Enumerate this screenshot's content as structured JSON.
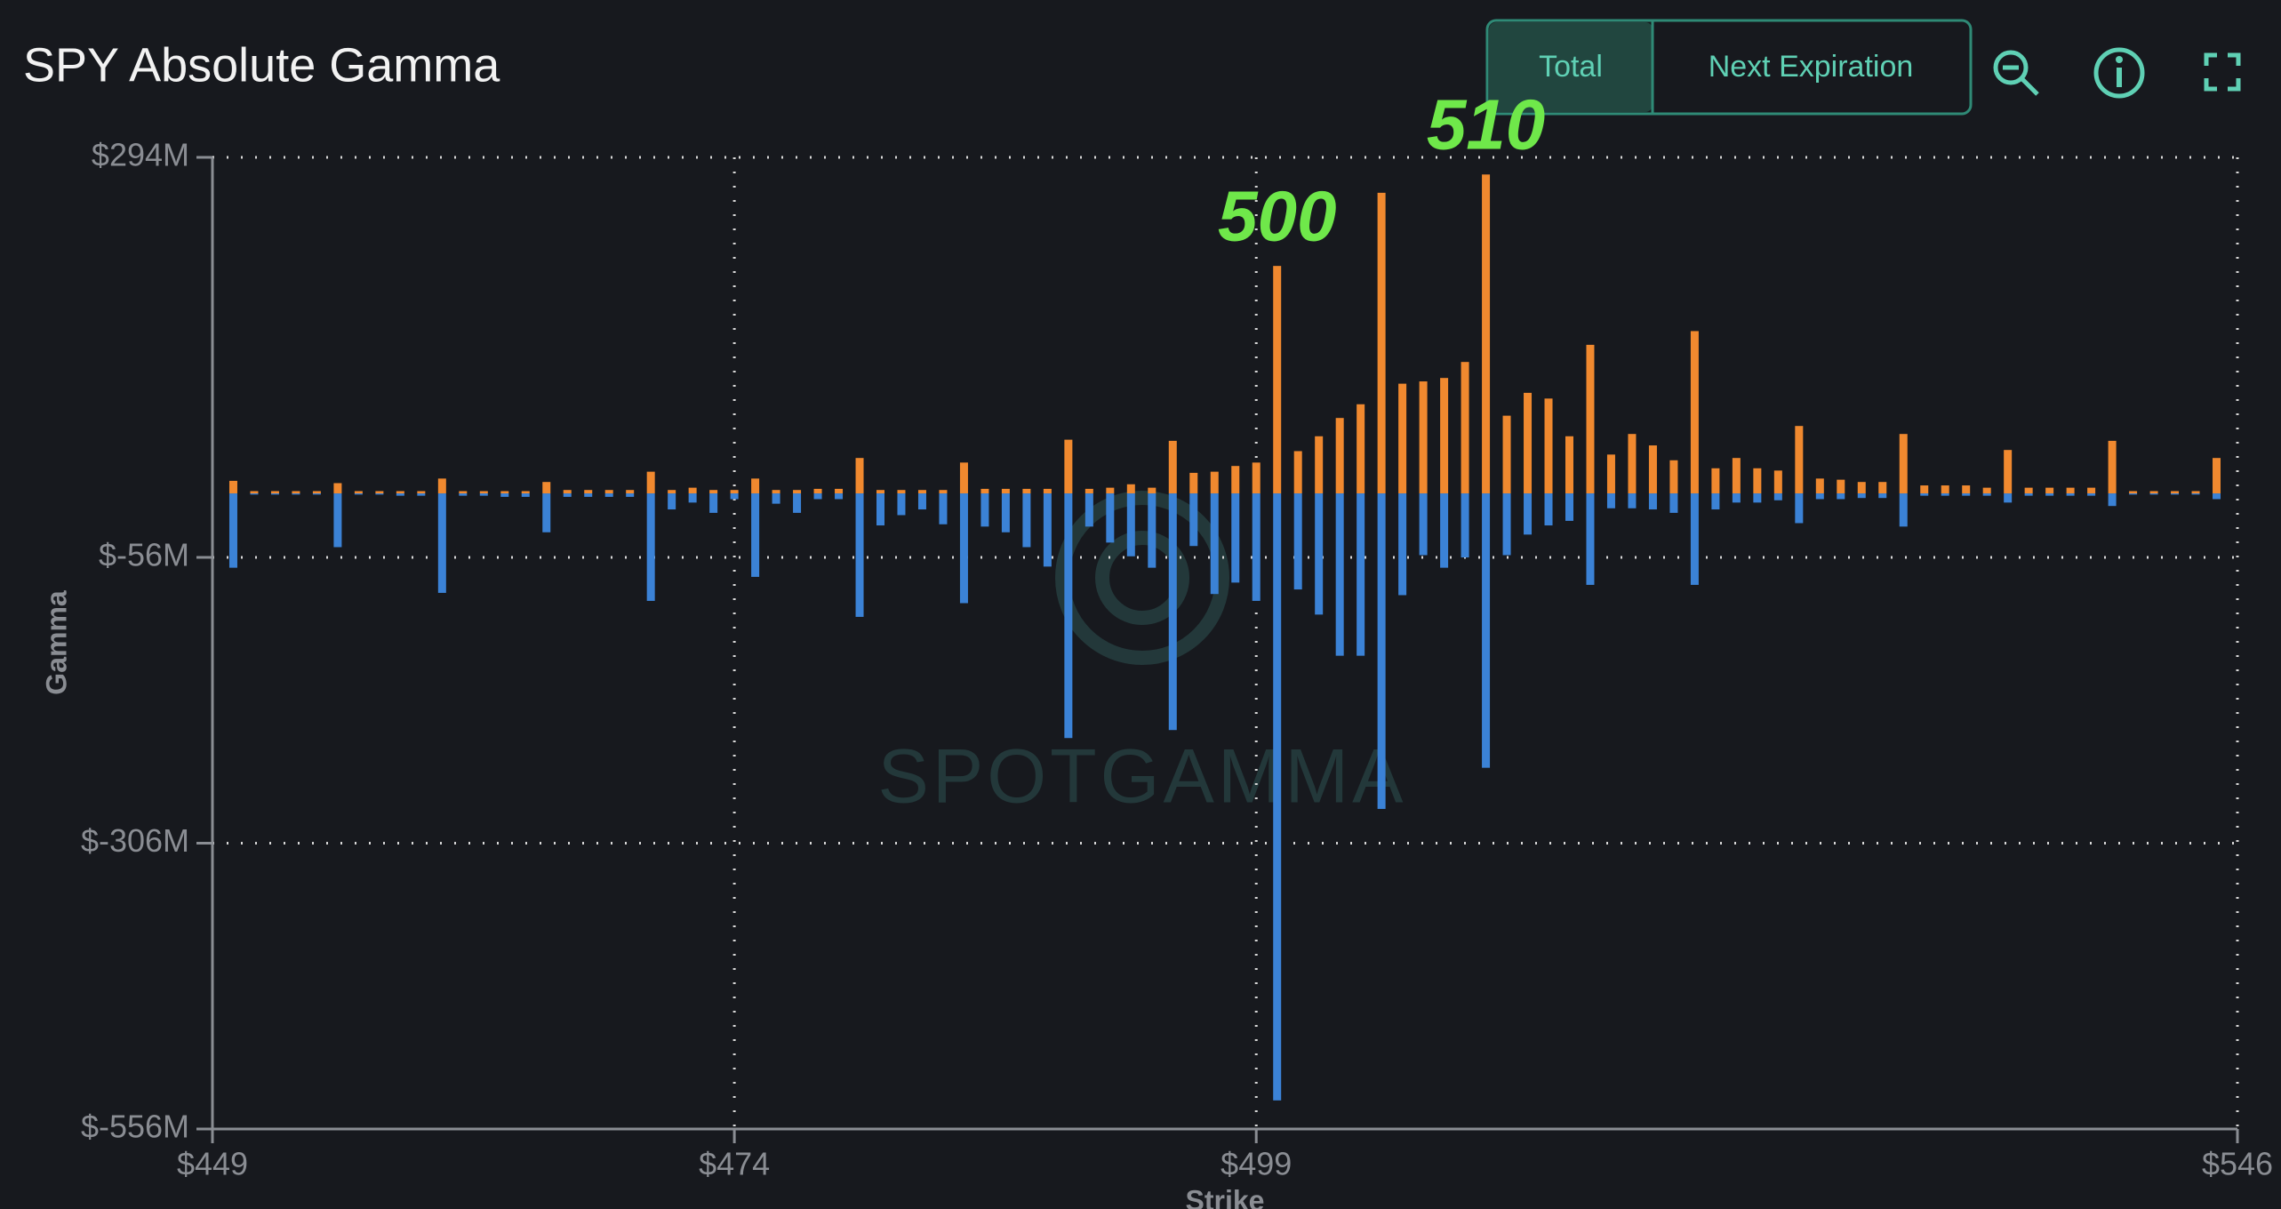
{
  "chart_data": {
    "type": "bar",
    "title": "SPY Absolute Gamma",
    "x_label": "Strike",
    "y_label": "Gamma",
    "watermark": "SPOTGAMMA",
    "x": [
      450,
      451,
      452,
      453,
      454,
      455,
      456,
      457,
      458,
      459,
      460,
      461,
      462,
      463,
      464,
      465,
      466,
      467,
      468,
      469,
      470,
      471,
      472,
      473,
      474,
      475,
      476,
      477,
      478,
      479,
      480,
      481,
      482,
      483,
      484,
      485,
      486,
      487,
      488,
      489,
      490,
      491,
      492,
      493,
      494,
      495,
      496,
      497,
      498,
      499,
      500,
      501,
      502,
      503,
      504,
      505,
      506,
      507,
      508,
      509,
      510,
      511,
      512,
      513,
      514,
      515,
      516,
      517,
      518,
      519,
      520,
      521,
      522,
      523,
      524,
      525,
      526,
      527,
      528,
      529,
      530,
      531,
      532,
      533,
      534,
      535,
      536,
      537,
      538,
      539,
      540,
      541,
      542,
      543,
      544,
      545
    ],
    "series": [
      {
        "color": "#f0892f",
        "values": [
          11,
          2,
          2,
          2,
          2,
          9,
          2,
          2,
          2,
          2,
          13,
          2,
          2,
          2,
          2,
          10,
          3,
          3,
          3,
          3,
          19,
          3,
          5,
          3,
          3,
          13,
          3,
          3,
          4,
          4,
          31,
          3,
          3,
          3,
          3,
          27,
          4,
          4,
          4,
          4,
          47,
          4,
          5,
          8,
          5,
          46,
          18,
          19,
          24,
          27,
          199,
          37,
          50,
          66,
          78,
          263,
          96,
          98,
          101,
          115,
          279,
          68,
          88,
          83,
          50,
          130,
          34,
          52,
          42,
          29,
          142,
          22,
          31,
          22,
          20,
          59,
          13,
          12,
          10,
          10,
          52,
          7,
          7,
          7,
          5,
          38,
          5,
          5,
          5,
          5,
          46,
          2,
          2,
          2,
          2,
          31
        ]
      },
      {
        "color": "#3b82d6",
        "values": [
          -65,
          -1,
          -1,
          -1,
          -1,
          -47,
          -1,
          -1,
          -2,
          -2,
          -87,
          -2,
          -2,
          -3,
          -3,
          -34,
          -3,
          -3,
          -3,
          -3,
          -94,
          -14,
          -8,
          -17,
          -5,
          -73,
          -9,
          -17,
          -5,
          -5,
          -108,
          -28,
          -19,
          -14,
          -27,
          -96,
          -29,
          -34,
          -47,
          -64,
          -214,
          -29,
          -43,
          -55,
          -65,
          -207,
          -46,
          -88,
          -78,
          -94,
          -531,
          -84,
          -106,
          -142,
          -142,
          -276,
          -89,
          -54,
          -65,
          -56,
          -240,
          -54,
          -36,
          -28,
          -24,
          -80,
          -13,
          -13,
          -14,
          -17,
          -80,
          -14,
          -8,
          -8,
          -6,
          -26,
          -5,
          -5,
          -4,
          -4,
          -29,
          -2,
          -2,
          -2,
          -2,
          -8,
          -2,
          -2,
          -2,
          -2,
          -11,
          -1,
          -1,
          -1,
          -1,
          -5
        ]
      }
    ],
    "xlim": [
      449,
      546
    ],
    "xticks": [
      {
        "value": 449,
        "label": "$449"
      },
      {
        "value": 474,
        "label": "$474"
      },
      {
        "value": 499,
        "label": "$499"
      },
      {
        "value": 546,
        "label": "$546"
      }
    ],
    "ylim": [
      -556,
      294
    ],
    "yticks": [
      {
        "value": 294,
        "label": "$294M"
      },
      {
        "value": -56,
        "label": "$-56M"
      },
      {
        "value": -306,
        "label": "$-306M"
      },
      {
        "value": -556,
        "label": "$-556M"
      }
    ],
    "grid": true,
    "annotations": [
      {
        "x": 500,
        "label": "500"
      },
      {
        "x": 510,
        "label": "510"
      }
    ]
  },
  "toolbar": {
    "buttons": [
      "Total",
      "Next Expiration"
    ]
  }
}
